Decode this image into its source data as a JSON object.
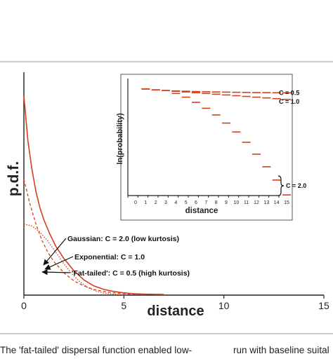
{
  "chart_data": [
    {
      "type": "line",
      "title": "",
      "xlabel": "distance",
      "ylabel": "p.d.f.",
      "xlim": [
        0,
        15
      ],
      "ylim": [
        0,
        1
      ],
      "x_ticks": [
        "0",
        "5",
        "10",
        "15"
      ],
      "y_ticks": [],
      "grid": false,
      "legend": "none",
      "series": [
        {
          "name": "",
          "style": "solid",
          "color": "#d2401e",
          "x": [
            0,
            0.2,
            0.4,
            0.6,
            0.8,
            1.0,
            1.3,
            1.6,
            2.0,
            2.5,
            3.0,
            3.5,
            4.0,
            4.5,
            5.0,
            5.5,
            6.0,
            7.0
          ],
          "y": [
            0.98,
            0.76,
            0.62,
            0.51,
            0.43,
            0.37,
            0.3,
            0.24,
            0.18,
            0.12,
            0.075,
            0.045,
            0.028,
            0.018,
            0.011,
            0.007,
            0.005,
            0.003
          ]
        },
        {
          "name": "",
          "style": "dashed",
          "color": "#d2401e",
          "x": [
            0,
            0.3,
            0.6,
            0.9,
            1.2,
            1.5,
            2.0,
            2.5,
            3.0,
            3.5,
            4.0,
            4.5,
            5.0,
            5.5,
            6.0
          ],
          "y": [
            0.57,
            0.45,
            0.35,
            0.27,
            0.21,
            0.165,
            0.11,
            0.07,
            0.045,
            0.028,
            0.018,
            0.011,
            0.007,
            0.004,
            0.003
          ]
        },
        {
          "name": "",
          "style": "dotted",
          "color": "#d2401e",
          "x": [
            0,
            0.4,
            0.8,
            1.2,
            1.6,
            2.0,
            2.4,
            2.8,
            3.2,
            3.6,
            4.0,
            4.5,
            5.0
          ],
          "y": [
            0.35,
            0.34,
            0.31,
            0.265,
            0.21,
            0.155,
            0.105,
            0.065,
            0.037,
            0.02,
            0.01,
            0.004,
            0.001
          ]
        }
      ],
      "annotations": [
        {
          "text": "Gaussian: C = 2.0 (low kurtosis)",
          "arrow_to": [
            1.0,
            0.265
          ]
        },
        {
          "text": "Exponential: C = 1.0",
          "arrow_to": [
            0.9,
            0.27
          ]
        },
        {
          "text": "'Fat-tailed': C = 0.5 (high kurtosis)",
          "arrow_to": [
            0.8,
            0.21
          ]
        }
      ]
    },
    {
      "type": "line",
      "title": "",
      "xlabel": "distance",
      "ylabel": "ln(probability)",
      "xlim": [
        0,
        15
      ],
      "x_ticks": [
        "0",
        "1",
        "2",
        "3",
        "4",
        "5",
        "6",
        "7",
        "8",
        "9",
        "10",
        "11",
        "12",
        "13",
        "14",
        "15"
      ],
      "y_ticks": [],
      "grid": false,
      "legend": "none",
      "series": [
        {
          "name": "C = 0.5",
          "style": "segments",
          "color": "#d2401e",
          "x": [
            1,
            2,
            3,
            4,
            5,
            6,
            7,
            8,
            9,
            10,
            11,
            12,
            13,
            14,
            15
          ],
          "y": [
            0,
            -0.12,
            -0.2,
            -0.26,
            -0.3,
            -0.34,
            -0.37,
            -0.4,
            -0.42,
            -0.44,
            -0.46,
            -0.48,
            -0.49,
            -0.5,
            -0.52
          ]
        },
        {
          "name": "C = 1.0",
          "style": "segments",
          "color": "#d2401e",
          "x": [
            1,
            2,
            3,
            4,
            5,
            6,
            7,
            8,
            9,
            10,
            11,
            12,
            13,
            14,
            15
          ],
          "y": [
            0,
            -0.1,
            -0.2,
            -0.3,
            -0.4,
            -0.5,
            -0.6,
            -0.7,
            -0.8,
            -0.9,
            -1.0,
            -1.1,
            -1.2,
            -1.3,
            -1.4
          ]
        },
        {
          "name": "C = 2.0",
          "style": "segments",
          "color": "#d2401e",
          "x": [
            4,
            5,
            6,
            7,
            8,
            9,
            10,
            11,
            12,
            13,
            14,
            15
          ],
          "y": [
            -0.6,
            -1.1,
            -1.8,
            -2.6,
            -3.5,
            -4.6,
            -5.8,
            -7.2,
            -8.8,
            -10.5,
            -12.3,
            -14.3
          ]
        }
      ],
      "labels": [
        {
          "text": "C = 0.5"
        },
        {
          "text": "C = 1.0"
        },
        {
          "text": "C = 2.0"
        }
      ]
    }
  ],
  "caption": {
    "left": "The 'fat-tailed' dispersal function enabled low-",
    "right": "run with baseline suital"
  }
}
